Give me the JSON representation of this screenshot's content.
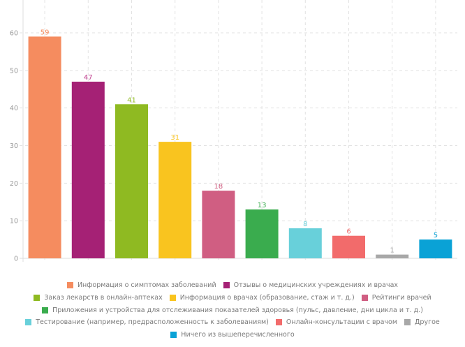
{
  "chart_data": {
    "type": "bar",
    "categories": [
      "Информация о симптомах заболеваний",
      "Отзывы о медицинских учреждениях и врачах",
      "Заказ лекарств в онлайн-аптеках",
      "Информация о врачах (образование, стаж и т. д.)",
      "Рейтинги врачей",
      "Приложения и устройства для отслеживания показателей здоровья (пульс, давление, дни цикла и т. д.)",
      "Тестирование (например, предрасположенность к заболеваниям)",
      "Онлайн-консультации с врачом",
      "Другое",
      "Ничего из вышеперечисленного"
    ],
    "values": [
      59,
      47,
      41,
      31,
      18,
      13,
      8,
      6,
      1,
      5
    ],
    "colors": [
      "#f58c5f",
      "#a52175",
      "#8fba22",
      "#f9c41f",
      "#d05e82",
      "#3aac4e",
      "#68d0da",
      "#f26b6b",
      "#a8a8a8",
      "#0aa2d6"
    ],
    "label_colors": [
      "#f58c5f",
      "#c0408f",
      "#8fba22",
      "#f9c41f",
      "#d05e82",
      "#3aac4e",
      "#68d0da",
      "#f26b6b",
      "#a8a8a8",
      "#0aa2d6"
    ],
    "yticks": [
      0,
      10,
      20,
      30,
      40,
      50,
      60
    ],
    "ylim": [
      0,
      68.7
    ],
    "grid": true,
    "legend_placement": "bottom",
    "title": "",
    "xlabel": "",
    "ylabel": ""
  },
  "legend_rows": [
    [
      0,
      1
    ],
    [
      2,
      3,
      4
    ],
    [
      5
    ],
    [
      6,
      7,
      8
    ],
    [
      9
    ]
  ]
}
